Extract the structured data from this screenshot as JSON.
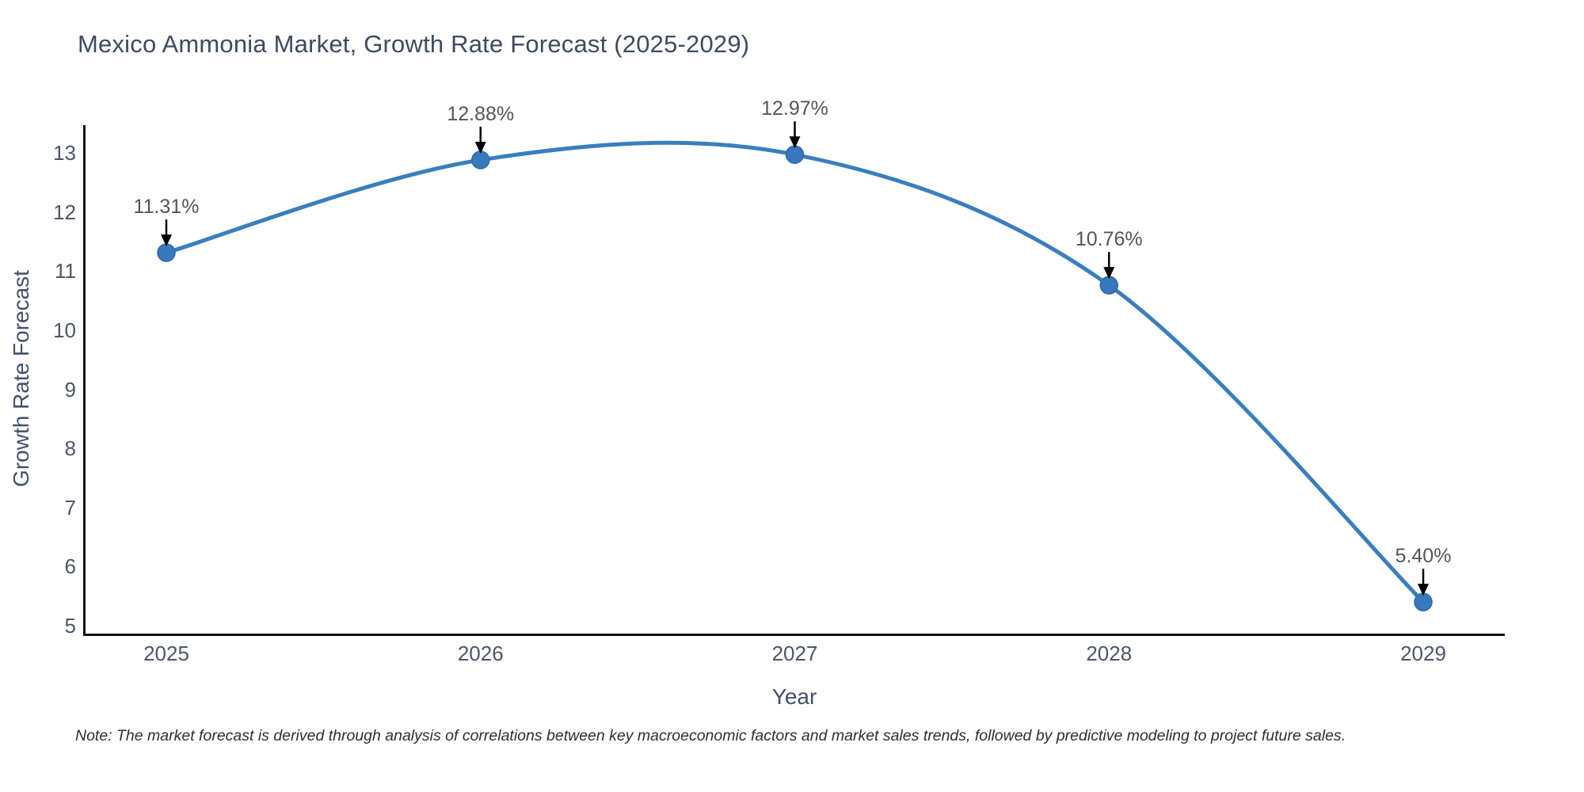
{
  "title": "Mexico Ammonia Market, Growth Rate Forecast (2025-2029)",
  "note": "Note: The market forecast is derived through analysis of correlations between key macroeconomic factors and market sales trends, followed by predictive modeling to project future sales.",
  "chart_data": {
    "type": "line",
    "title": "Mexico Ammonia Market, Growth Rate Forecast (2025-2029)",
    "categories": [
      "2025",
      "2026",
      "2027",
      "2028",
      "2029"
    ],
    "values": [
      11.31,
      12.88,
      12.97,
      10.76,
      5.4
    ],
    "point_labels": [
      "11.31%",
      "12.88%",
      "12.97%",
      "10.76%",
      "5.40%"
    ],
    "xlabel": "Year",
    "ylabel": "Growth Rate Forecast",
    "yticks": [
      5,
      6,
      7,
      8,
      9,
      10,
      11,
      12,
      13
    ],
    "ylim": [
      4.85,
      13.45
    ],
    "line_shape": "spline",
    "grid": false,
    "legend": "none",
    "line_color": "#3a7ebf",
    "marker_color": "#3778be",
    "marker_edge_color": "#2f6ba5",
    "annotation_arrow_color": "#000000",
    "axis_line_color": "#111111"
  }
}
